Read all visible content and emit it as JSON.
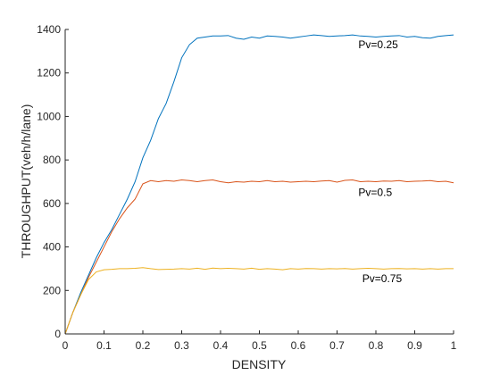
{
  "chart_data": {
    "type": "line",
    "xlabel": "DENSITY",
    "ylabel": "THROUGHPUT(veh/h/lane)",
    "xlim": [
      0,
      1
    ],
    "ylim": [
      0,
      1400
    ],
    "xticks": [
      "0",
      "0.1",
      "0.2",
      "0.3",
      "0.4",
      "0.5",
      "0.6",
      "0.7",
      "0.8",
      "0.9",
      "1"
    ],
    "yticks": [
      "0",
      "200",
      "400",
      "600",
      "800",
      "1000",
      "1200",
      "1400"
    ],
    "grid": false,
    "series": [
      {
        "color": "#0072BD",
        "x": [
          0,
          0.02,
          0.04,
          0.06,
          0.08,
          0.1,
          0.12,
          0.14,
          0.16,
          0.18,
          0.2,
          0.22,
          0.24,
          0.26,
          0.28,
          0.3,
          0.32,
          0.34,
          0.36,
          0.38,
          0.4,
          0.42,
          0.44,
          0.46,
          0.48,
          0.5,
          0.52,
          0.54,
          0.56,
          0.58,
          0.6,
          0.62,
          0.64,
          0.66,
          0.68,
          0.7,
          0.72,
          0.74,
          0.76,
          0.78,
          0.8,
          0.82,
          0.84,
          0.86,
          0.88,
          0.9,
          0.92,
          0.94,
          0.96,
          0.98,
          1.0
        ],
        "y": [
          0,
          100,
          190,
          270,
          350,
          420,
          480,
          550,
          620,
          700,
          810,
          890,
          990,
          1060,
          1160,
          1270,
          1330,
          1360,
          1365,
          1370,
          1370,
          1372,
          1360,
          1355,
          1365,
          1360,
          1370,
          1368,
          1365,
          1360,
          1365,
          1370,
          1375,
          1372,
          1368,
          1370,
          1372,
          1375,
          1370,
          1368,
          1365,
          1368,
          1370,
          1372,
          1365,
          1368,
          1362,
          1360,
          1368,
          1372,
          1375
        ]
      },
      {
        "color": "#D95319",
        "x": [
          0,
          0.02,
          0.04,
          0.06,
          0.08,
          0.1,
          0.12,
          0.14,
          0.16,
          0.18,
          0.2,
          0.22,
          0.24,
          0.26,
          0.28,
          0.3,
          0.32,
          0.34,
          0.36,
          0.38,
          0.4,
          0.42,
          0.44,
          0.46,
          0.48,
          0.5,
          0.52,
          0.54,
          0.56,
          0.58,
          0.6,
          0.62,
          0.64,
          0.66,
          0.68,
          0.7,
          0.72,
          0.74,
          0.76,
          0.78,
          0.8,
          0.82,
          0.84,
          0.86,
          0.88,
          0.9,
          0.92,
          0.94,
          0.96,
          0.98,
          1.0
        ],
        "y": [
          0,
          100,
          180,
          260,
          330,
          400,
          470,
          530,
          580,
          620,
          690,
          705,
          700,
          705,
          702,
          708,
          705,
          700,
          705,
          708,
          700,
          695,
          700,
          698,
          702,
          700,
          705,
          700,
          702,
          698,
          700,
          702,
          700,
          703,
          705,
          698,
          706,
          708,
          700,
          702,
          700,
          703,
          702,
          705,
          700,
          702,
          703,
          705,
          700,
          702,
          695
        ]
      },
      {
        "color": "#EDB120",
        "x": [
          0,
          0.02,
          0.04,
          0.06,
          0.08,
          0.1,
          0.12,
          0.14,
          0.16,
          0.18,
          0.2,
          0.22,
          0.24,
          0.26,
          0.28,
          0.3,
          0.32,
          0.34,
          0.36,
          0.38,
          0.4,
          0.42,
          0.44,
          0.46,
          0.48,
          0.5,
          0.52,
          0.54,
          0.56,
          0.58,
          0.6,
          0.62,
          0.64,
          0.66,
          0.68,
          0.7,
          0.72,
          0.74,
          0.76,
          0.78,
          0.8,
          0.82,
          0.84,
          0.86,
          0.88,
          0.9,
          0.92,
          0.94,
          0.96,
          0.98,
          1.0
        ],
        "y": [
          0,
          100,
          180,
          250,
          285,
          295,
          297,
          300,
          300,
          302,
          305,
          300,
          296,
          297,
          298,
          300,
          298,
          302,
          297,
          303,
          300,
          302,
          300,
          298,
          302,
          297,
          300,
          298,
          295,
          300,
          298,
          301,
          300,
          298,
          300,
          299,
          301,
          298,
          300,
          302,
          300,
          298,
          300,
          301,
          299,
          300,
          298,
          300,
          298,
          300,
          300
        ]
      }
    ],
    "annotations": [
      {
        "text": "Pv=0.25",
        "x": 0.755,
        "y": 1330
      },
      {
        "text": "Pv=0.5",
        "x": 0.755,
        "y": 650
      },
      {
        "text": "Pv=0.75",
        "x": 0.765,
        "y": 255
      }
    ]
  }
}
